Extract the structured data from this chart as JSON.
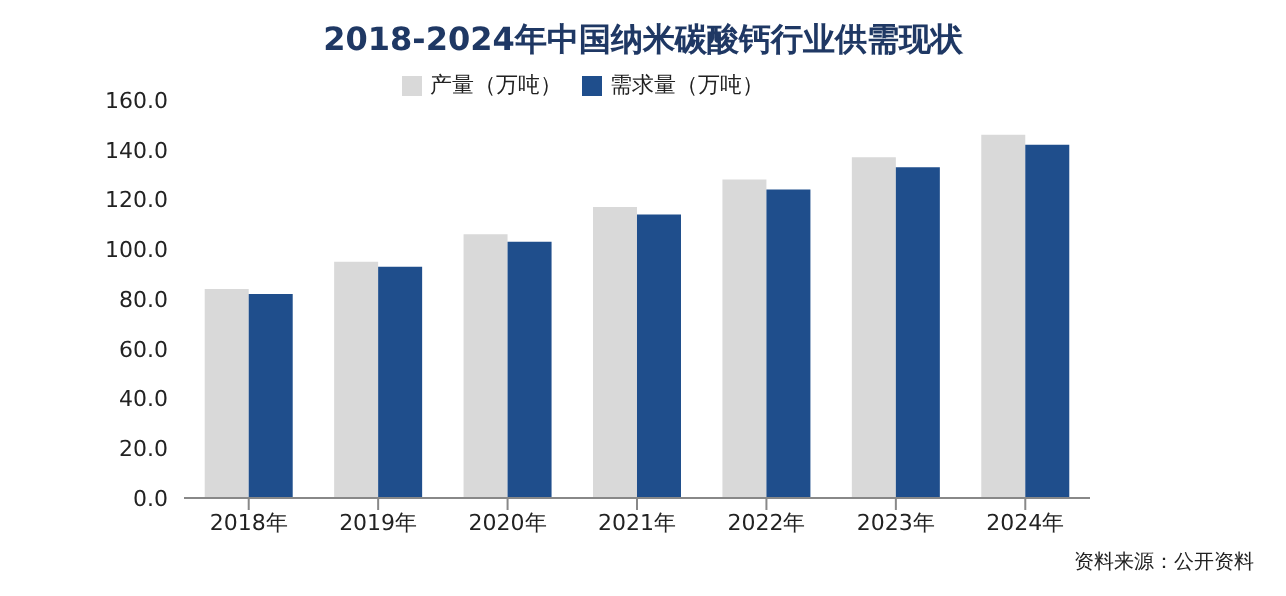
{
  "chart_data": {
    "type": "bar",
    "title": "2018-2024年中国纳米碳酸钙行业供需现状",
    "categories": [
      "2018年",
      "2019年",
      "2020年",
      "2021年",
      "2022年",
      "2023年",
      "2024年"
    ],
    "series": [
      {
        "name": "产量（万吨）",
        "color": "#d9d9d9",
        "values": [
          84,
          95,
          106,
          117,
          128,
          137,
          146
        ]
      },
      {
        "name": "需求量（万吨）",
        "color": "#1f4e8c",
        "values": [
          82,
          93,
          103,
          114,
          124,
          133,
          142
        ]
      }
    ],
    "ylim": [
      0,
      160
    ],
    "yticks": [
      {
        "value": 0,
        "label": "0.0"
      },
      {
        "value": 20,
        "label": "20.0"
      },
      {
        "value": 40,
        "label": "40.0"
      },
      {
        "value": 60,
        "label": "60.0"
      },
      {
        "value": 80,
        "label": "80.0"
      },
      {
        "value": 100,
        "label": "100.0"
      },
      {
        "value": 120,
        "label": "120.0"
      },
      {
        "value": 140,
        "label": "140.0"
      },
      {
        "value": 160,
        "label": "160.0"
      }
    ],
    "grid": false,
    "legend": "top",
    "annotations": [
      "资料来源：公开资料"
    ]
  }
}
